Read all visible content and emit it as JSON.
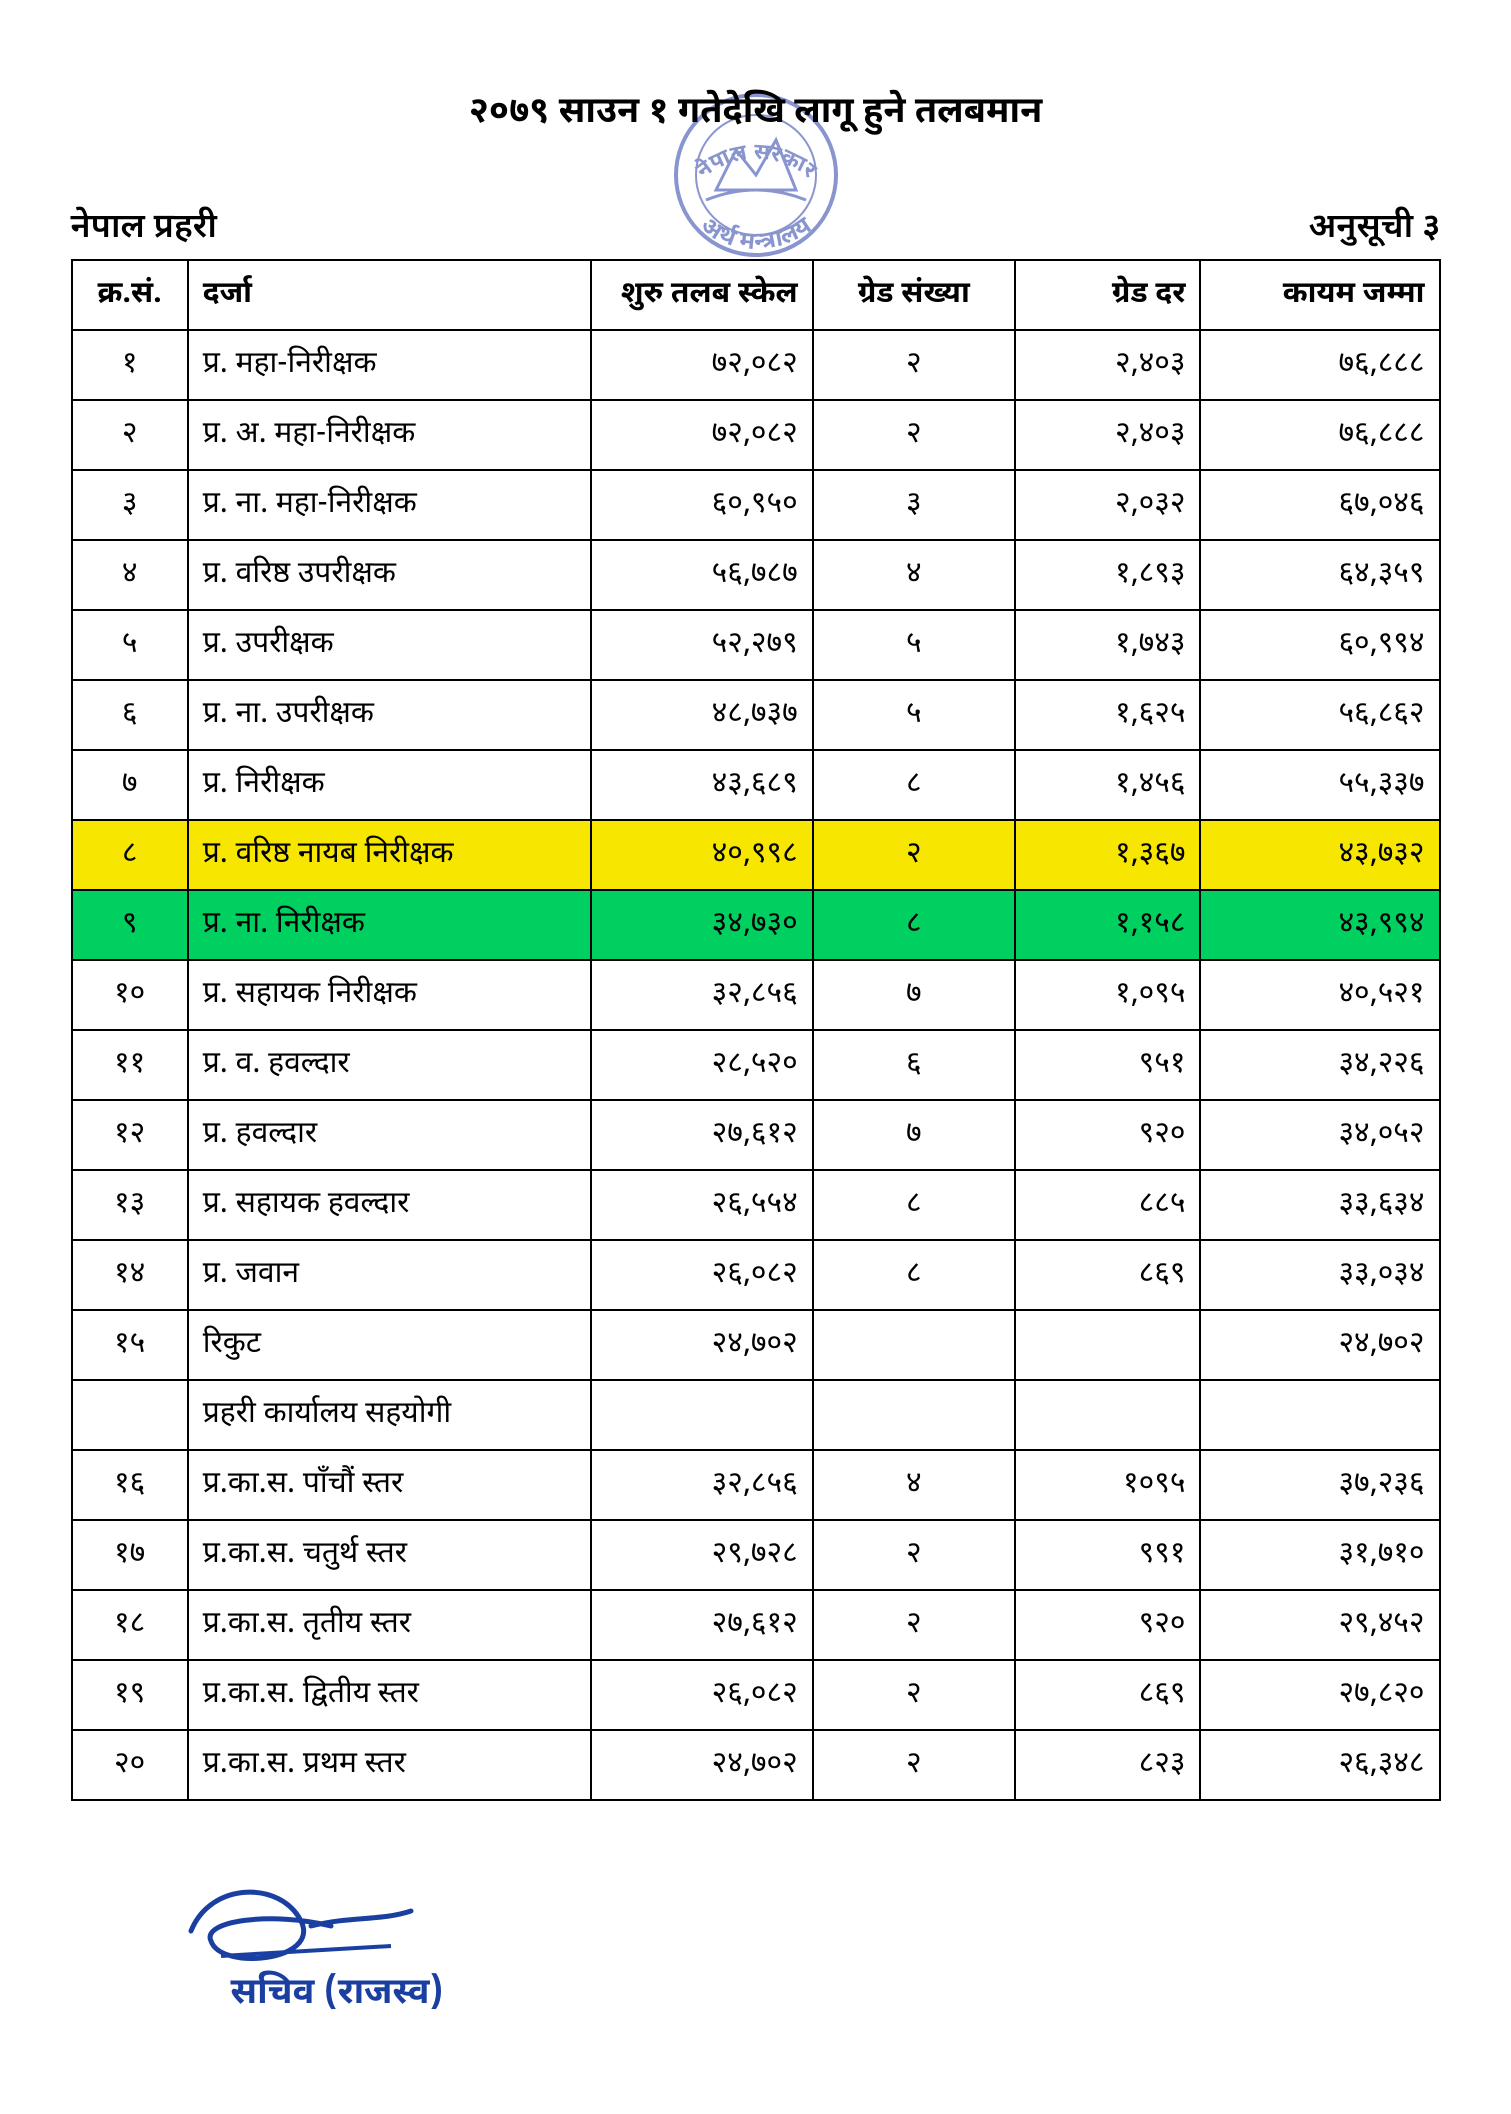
{
  "title": "२०७९ साउन १ गतेदेखि लागू हुने तलबमान",
  "org_left": "नेपाल प्रहरी",
  "annex_right": "अनुसूची ३",
  "seal": {
    "outer_text_top": "नेपाल सरकार",
    "outer_text_bottom": "अर्थ मन्त्रालय",
    "stroke_color": "#2a3fa8",
    "fill_opacity": 0.55
  },
  "table": {
    "columns": [
      {
        "label": "क्र.सं.",
        "align": "center"
      },
      {
        "label": "दर्जा",
        "align": "left"
      },
      {
        "label": "शुरु तलब स्केल",
        "align": "right"
      },
      {
        "label": "ग्रेड संख्या",
        "align": "center"
      },
      {
        "label": "ग्रेड दर",
        "align": "right"
      },
      {
        "label": "कायम जम्मा",
        "align": "right"
      }
    ],
    "highlight_colors": {
      "yellow": "#f6e600",
      "green": "#00d060"
    },
    "rows": [
      {
        "sn": "१",
        "rank": "प्र. महा-निरीक्षक",
        "scale": "७२,०८२",
        "gnum": "२",
        "grate": "२,४०३",
        "total": "७६,८८८",
        "highlight": null
      },
      {
        "sn": "२",
        "rank": "प्र. अ. महा-निरीक्षक",
        "scale": "७२,०८२",
        "gnum": "२",
        "grate": "२,४०३",
        "total": "७६,८८८",
        "highlight": null
      },
      {
        "sn": "३",
        "rank": "प्र. ना. महा-निरीक्षक",
        "scale": "६०,९५०",
        "gnum": "३",
        "grate": "२,०३२",
        "total": "६७,०४६",
        "highlight": null
      },
      {
        "sn": "४",
        "rank": "प्र. वरिष्ठ उपरीक्षक",
        "scale": "५६,७८७",
        "gnum": "४",
        "grate": "१,८९३",
        "total": "६४,३५९",
        "highlight": null
      },
      {
        "sn": "५",
        "rank": "प्र. उपरीक्षक",
        "scale": "५२,२७९",
        "gnum": "५",
        "grate": "१,७४३",
        "total": "६०,९९४",
        "highlight": null
      },
      {
        "sn": "६",
        "rank": "प्र. ना. उपरीक्षक",
        "scale": "४८,७३७",
        "gnum": "५",
        "grate": "१,६२५",
        "total": "५६,८६२",
        "highlight": null
      },
      {
        "sn": "७",
        "rank": "प्र. निरीक्षक",
        "scale": "४३,६८९",
        "gnum": "८",
        "grate": "१,४५६",
        "total": "५५,३३७",
        "highlight": null
      },
      {
        "sn": "८",
        "rank": "प्र. वरिष्ठ नायब निरीक्षक",
        "scale": "४०,९९८",
        "gnum": "२",
        "grate": "१,३६७",
        "total": "४३,७३२",
        "highlight": "yellow"
      },
      {
        "sn": "९",
        "rank": "प्र. ना. निरीक्षक",
        "scale": "३४,७३०",
        "gnum": "८",
        "grate": "१,१५८",
        "total": "४३,९९४",
        "highlight": "green"
      },
      {
        "sn": "१०",
        "rank": "प्र. सहायक निरीक्षक",
        "scale": "३२,८५६",
        "gnum": "७",
        "grate": "१,०९५",
        "total": "४०,५२१",
        "highlight": null
      },
      {
        "sn": "११",
        "rank": "प्र. व. हवल्दार",
        "scale": "२८,५२०",
        "gnum": "६",
        "grate": "९५१",
        "total": "३४,२२६",
        "highlight": null
      },
      {
        "sn": "१२",
        "rank": "प्र. हवल्दार",
        "scale": "२७,६१२",
        "gnum": "७",
        "grate": "९२०",
        "total": "३४,०५२",
        "highlight": null
      },
      {
        "sn": "१३",
        "rank": "प्र. सहायक हवल्दार",
        "scale": "२६,५५४",
        "gnum": "८",
        "grate": "८८५",
        "total": "३३,६३४",
        "highlight": null
      },
      {
        "sn": "१४",
        "rank": "प्र. जवान",
        "scale": "२६,०८२",
        "gnum": "८",
        "grate": "८६९",
        "total": "३३,०३४",
        "highlight": null
      },
      {
        "sn": "१५",
        "rank": "रिकुट",
        "scale": "२४,७०२",
        "gnum": "",
        "grate": "",
        "total": "२४,७०२",
        "highlight": null
      },
      {
        "sn": "",
        "rank": "प्रहरी कार्यालय सहयोगी",
        "scale": "",
        "gnum": "",
        "grate": "",
        "total": "",
        "highlight": null
      },
      {
        "sn": "१६",
        "rank": "प्र.का.स. पाँचौं स्तर",
        "scale": "३२,८५६",
        "gnum": "४",
        "grate": "१०९५",
        "total": "३७,२३६",
        "highlight": null
      },
      {
        "sn": "१७",
        "rank": "प्र.का.स. चतुर्थ स्तर",
        "scale": "२९,७२८",
        "gnum": "२",
        "grate": "९९१",
        "total": "३१,७१०",
        "highlight": null
      },
      {
        "sn": "१८",
        "rank": "प्र.का.स. तृतीय स्तर",
        "scale": "२७,६१२",
        "gnum": "२",
        "grate": "९२०",
        "total": "२९,४५२",
        "highlight": null
      },
      {
        "sn": "१९",
        "rank": "प्र.का.स. द्वितीय स्तर",
        "scale": "२६,०८२",
        "gnum": "२",
        "grate": "८६९",
        "total": "२७,८२०",
        "highlight": null
      },
      {
        "sn": "२०",
        "rank": "प्र.का.स. प्रथम स्तर",
        "scale": "२४,७०२",
        "gnum": "२",
        "grate": "८२३",
        "total": "२६,३४८",
        "highlight": null
      }
    ]
  },
  "signature": {
    "label": "सचिव (राजस्व)",
    "color": "#1a3fa0"
  }
}
